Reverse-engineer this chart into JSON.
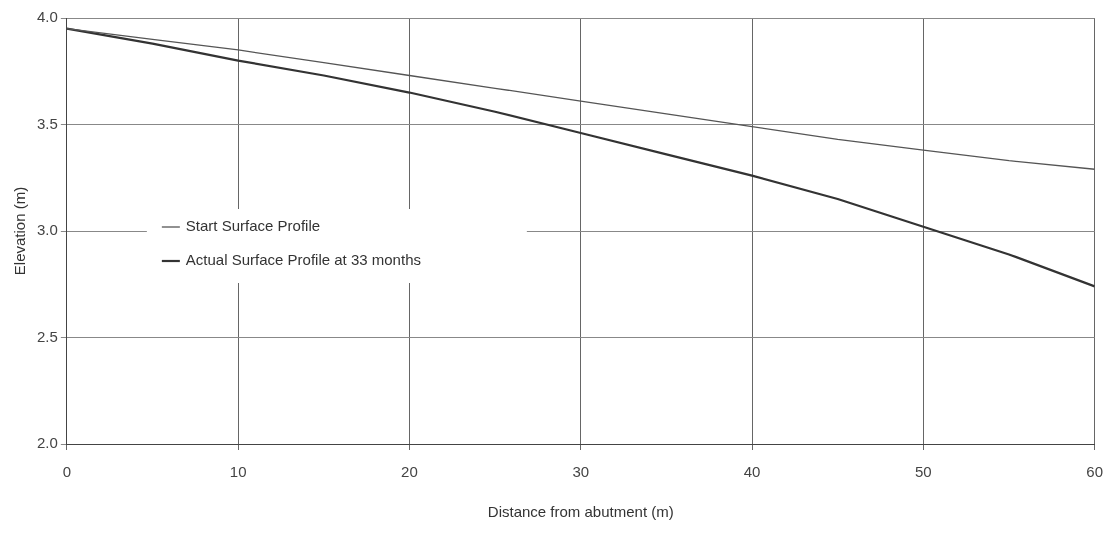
{
  "chart_data": {
    "type": "line",
    "xlabel": "Distance from abutment (m)",
    "ylabel": "Elevation (m)",
    "x": [
      0,
      5,
      10,
      15,
      20,
      25,
      30,
      35,
      40,
      45,
      50,
      55,
      60
    ],
    "series": [
      {
        "name": "Start Surface Profile",
        "color": "#555555",
        "values": [
          3.95,
          3.9,
          3.85,
          3.79,
          3.73,
          3.67,
          3.61,
          3.55,
          3.49,
          3.43,
          3.38,
          3.33,
          3.29
        ]
      },
      {
        "name": "Actual Surface Profile at 33 months",
        "color": "#333333",
        "values": [
          3.95,
          3.88,
          3.8,
          3.73,
          3.65,
          3.56,
          3.46,
          3.36,
          3.26,
          3.15,
          3.02,
          2.89,
          2.74
        ]
      }
    ],
    "xlim": [
      0,
      60
    ],
    "xticks": [
      0,
      10,
      20,
      30,
      40,
      50,
      60
    ],
    "ylim": [
      2,
      4
    ],
    "yticks": [
      {
        "value": 2,
        "label": "2.0"
      },
      {
        "value": 2.5,
        "label": "2.5"
      },
      {
        "value": 3,
        "label": "3.0"
      },
      {
        "value": 3.5,
        "label": "3.5"
      },
      {
        "value": 4,
        "label": "4.0"
      }
    ],
    "grid": true,
    "legend": "left",
    "marker": "none",
    "line_style": "solid"
  }
}
